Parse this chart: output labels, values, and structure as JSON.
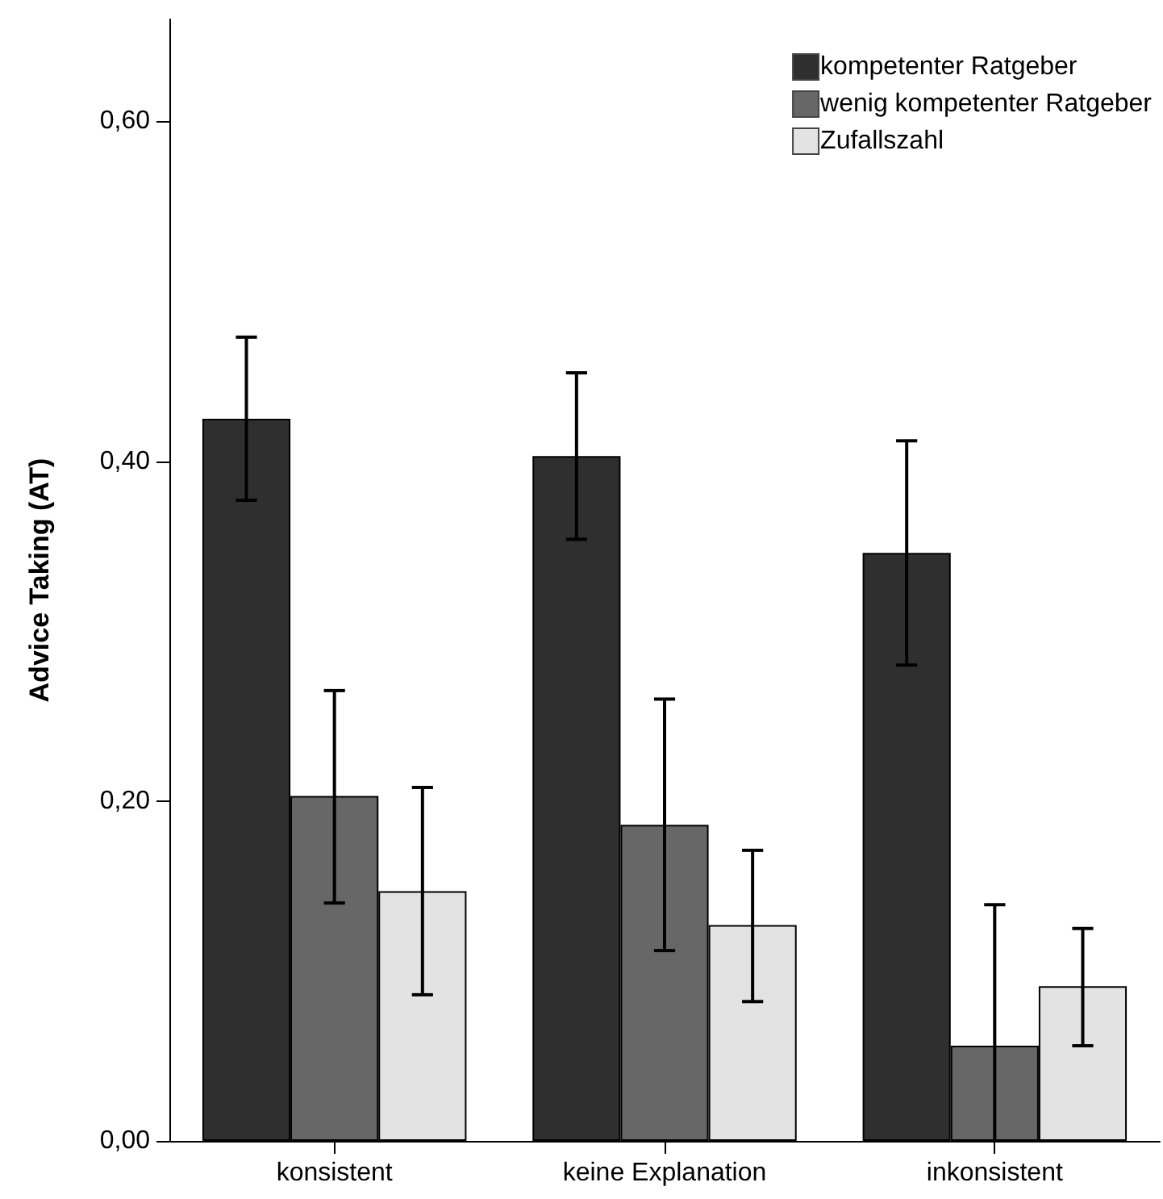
{
  "chart_data": {
    "type": "bar",
    "ylabel": "Advice Taking (AT)",
    "categories": [
      "konsistent",
      "keine Explanation",
      "inkonsistent"
    ],
    "series": [
      {
        "name": "kompetenter Ratgeber",
        "color": "#2f2f2f",
        "values": [
          0.425,
          0.403,
          0.346
        ],
        "errors": [
          [
            0.377,
            0.473
          ],
          [
            0.354,
            0.452
          ],
          [
            0.28,
            0.412
          ]
        ]
      },
      {
        "name": "wenig kompetenter Ratgeber",
        "color": "#676767",
        "values": [
          0.203,
          0.186,
          0.056
        ],
        "errors": [
          [
            0.14,
            0.265
          ],
          [
            0.112,
            0.26
          ],
          [
            0.0,
            0.139
          ]
        ]
      },
      {
        "name": "Zufallszahl",
        "color": "#e3e3e3",
        "values": [
          0.147,
          0.127,
          0.091
        ],
        "errors": [
          [
            0.086,
            0.208
          ],
          [
            0.082,
            0.171
          ],
          [
            0.056,
            0.125
          ]
        ]
      }
    ],
    "ylim": [
      0,
      0.66
    ],
    "yticks": [
      {
        "value": 0,
        "label": "0,00"
      },
      {
        "value": 0.2,
        "label": "0,20"
      },
      {
        "value": 0.4,
        "label": "0,40"
      },
      {
        "value": 0.6,
        "label": "0,60"
      }
    ],
    "grid": false,
    "legend": "top right"
  }
}
